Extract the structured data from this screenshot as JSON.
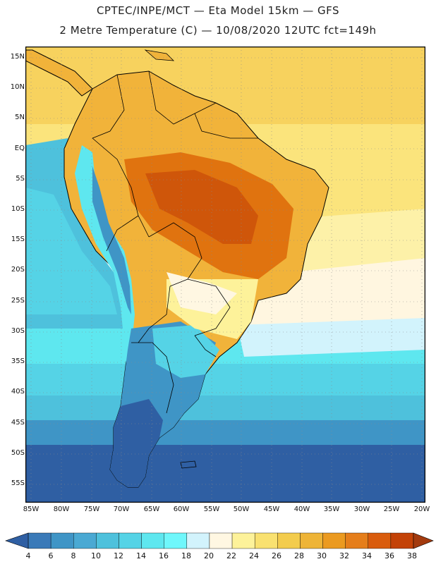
{
  "title": {
    "line1": "CPTEC/INPE/MCT —  Eta Model 15km — GFS",
    "line2": "2 Metre Temperature (C) — 10/08/2020 12UTC fct=149h"
  },
  "map": {
    "region": "South America",
    "variable": "2 Metre Temperature (C)",
    "lat_labels": [
      "15N",
      "10N",
      "5N",
      "EQ",
      "5S",
      "10S",
      "15S",
      "20S",
      "25S",
      "30S",
      "35S",
      "40S",
      "45S",
      "50S",
      "55S"
    ],
    "lon_labels": [
      "85W",
      "80W",
      "75W",
      "70W",
      "65W",
      "60W",
      "55W",
      "50W",
      "45W",
      "40W",
      "35W",
      "30W",
      "25W",
      "20W"
    ],
    "lat_range": [
      17,
      -58
    ],
    "lon_range": [
      -86,
      -19.5
    ]
  },
  "colorbar": {
    "labels": [
      "4",
      "6",
      "8",
      "10",
      "12",
      "14",
      "16",
      "18",
      "20",
      "22",
      "24",
      "26",
      "28",
      "30",
      "32",
      "34",
      "36",
      "38"
    ],
    "colors": [
      "#2f5fa3",
      "#3a7ab8",
      "#3f95c6",
      "#4aa9d3",
      "#4ec1dc",
      "#55d3e6",
      "#5ee7ef",
      "#6ff7fb",
      "#d2f3fc",
      "#fff7e2",
      "#fdf29a",
      "#f9e170",
      "#f3cc4d",
      "#eeb437",
      "#eb9a20",
      "#e57e1b",
      "#d95c0d",
      "#c34207",
      "#a33a0e"
    ]
  }
}
